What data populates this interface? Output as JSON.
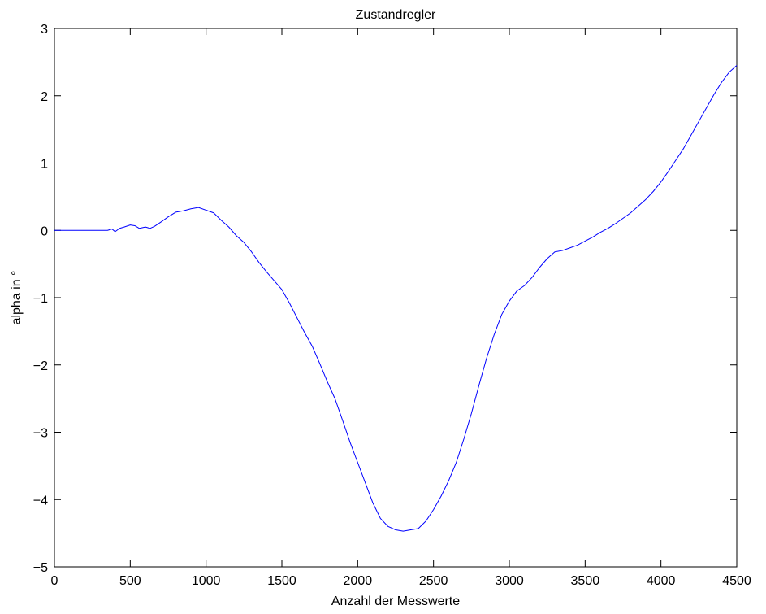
{
  "chart_data": {
    "type": "line",
    "title": "Zustandregler",
    "xlabel": "Anzahl der Messwerte",
    "ylabel": "alpha in °",
    "xlim": [
      0,
      4500
    ],
    "ylim": [
      -5,
      3
    ],
    "xticks": [
      0,
      500,
      1000,
      1500,
      2000,
      2500,
      3000,
      3500,
      4000,
      4500
    ],
    "yticks": [
      3,
      2,
      1,
      0,
      -1,
      -2,
      -3,
      -4,
      -5
    ],
    "xtick_labels": [
      "0",
      "500",
      "1000",
      "1500",
      "2000",
      "2500",
      "3000",
      "3500",
      "4000",
      "4500"
    ],
    "ytick_labels": [
      "3",
      "2",
      "1",
      "0",
      "−1",
      "−2",
      "−3",
      "−4",
      "−5"
    ],
    "grid": false,
    "series": [
      {
        "color": "#0000ff",
        "x": [
          0,
          100,
          200,
          300,
          350,
          380,
          400,
          430,
          460,
          500,
          530,
          560,
          600,
          630,
          660,
          700,
          750,
          800,
          850,
          900,
          950,
          1000,
          1050,
          1100,
          1150,
          1200,
          1250,
          1300,
          1350,
          1400,
          1450,
          1500,
          1550,
          1600,
          1650,
          1700,
          1750,
          1800,
          1850,
          1900,
          1950,
          2000,
          2050,
          2100,
          2150,
          2200,
          2250,
          2300,
          2350,
          2400,
          2450,
          2500,
          2550,
          2600,
          2650,
          2700,
          2750,
          2800,
          2850,
          2900,
          2950,
          3000,
          3050,
          3100,
          3150,
          3200,
          3250,
          3300,
          3350,
          3400,
          3450,
          3500,
          3550,
          3600,
          3650,
          3700,
          3750,
          3800,
          3850,
          3900,
          3950,
          4000,
          4050,
          4100,
          4150,
          4200,
          4250,
          4300,
          4350,
          4400,
          4450,
          4500
        ],
        "y": [
          0,
          0,
          0,
          0,
          0,
          0.02,
          -0.02,
          0.03,
          0.05,
          0.08,
          0.07,
          0.03,
          0.05,
          0.03,
          0.06,
          0.12,
          0.2,
          0.27,
          0.29,
          0.32,
          0.34,
          0.3,
          0.26,
          0.15,
          0.05,
          -0.08,
          -0.18,
          -0.32,
          -0.48,
          -0.62,
          -0.75,
          -0.88,
          -1.08,
          -1.3,
          -1.52,
          -1.72,
          -1.98,
          -2.25,
          -2.5,
          -2.82,
          -3.15,
          -3.45,
          -3.75,
          -4.05,
          -4.28,
          -4.4,
          -4.45,
          -4.47,
          -4.45,
          -4.43,
          -4.32,
          -4.15,
          -3.95,
          -3.72,
          -3.45,
          -3.1,
          -2.72,
          -2.3,
          -1.9,
          -1.55,
          -1.25,
          -1.05,
          -0.9,
          -0.82,
          -0.7,
          -0.55,
          -0.42,
          -0.32,
          -0.3,
          -0.26,
          -0.22,
          -0.16,
          -0.1,
          -0.03,
          0.03,
          0.1,
          0.18,
          0.26,
          0.36,
          0.46,
          0.58,
          0.72,
          0.88,
          1.05,
          1.22,
          1.42,
          1.62,
          1.82,
          2.02,
          2.2,
          2.35,
          2.45
        ]
      }
    ]
  }
}
